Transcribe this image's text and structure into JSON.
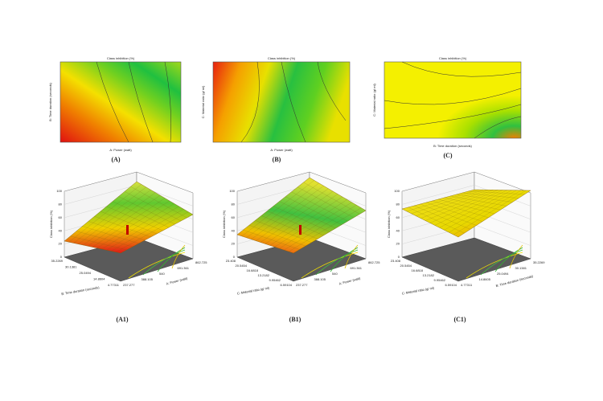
{
  "contours": [
    {
      "label": "(A)",
      "title": "Class inhibition (%)",
      "x_label": "A: Power (watt)",
      "y_label": "B: Time duration (seconds)"
    },
    {
      "label": "(B)",
      "title": "Class inhibition (%)",
      "x_label": "A: Power (watt)",
      "y_label": "C: Material ratio (g/ ml)"
    },
    {
      "label": "(C)",
      "title": "Class inhibition (%)",
      "x_label": "B: Time duration (seconds)",
      "y_label": "C: Material ratio (g/ ml)"
    }
  ],
  "surfaces": [
    {
      "label": "(A1)",
      "z_label": "Class inhibition (%)",
      "front_label": "B: Time duration (seconds)",
      "right_label": "A: Power (watt)",
      "z_ticks": [
        "0",
        "20",
        "40",
        "60",
        "80",
        "100"
      ],
      "front_ticks": [
        "35.2269",
        "30.1381",
        "25.0494",
        "14.8604",
        "4.77311"
      ],
      "right_ticks": [
        "237.277",
        "388.105",
        "540",
        "691.361",
        "862.725"
      ]
    },
    {
      "label": "(B1)",
      "z_label": "Class inhibition (%)",
      "front_label": "C: Material ratio (g/ ml)",
      "right_label": "A: Power (watt)",
      "z_ticks": [
        "0",
        "20",
        "40",
        "60",
        "80",
        "100"
      ],
      "front_ticks": [
        "23.408",
        "20.5454",
        "16.6818",
        "13.2182",
        "9.95462",
        "6.59104"
      ],
      "right_ticks": [
        "237.277",
        "388.105",
        "540",
        "691.361",
        "862.725"
      ]
    },
    {
      "label": "(C1)",
      "z_label": "Class inhibition (%)",
      "front_label": "C: Material ratio (g/ ml)",
      "right_label": "B: Time duration (seconds)",
      "z_ticks": [
        "0",
        "20",
        "40",
        "60",
        "80",
        "100"
      ],
      "front_ticks": [
        "23.408",
        "20.5454",
        "16.6818",
        "13.2182",
        "9.95462",
        "6.59104"
      ],
      "right_ticks": [
        "4.77311",
        "14.8605",
        "25.0494",
        "30.1381",
        "35.2269"
      ]
    }
  ]
}
